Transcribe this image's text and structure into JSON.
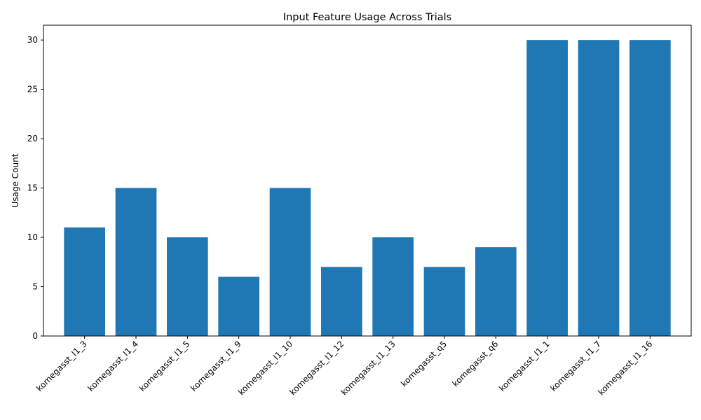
{
  "chart_data": {
    "type": "bar",
    "title": "Input Feature Usage Across Trials",
    "xlabel": "",
    "ylabel": "Usage Count",
    "categories": [
      "komegasst_I1_3",
      "komegasst_I1_4",
      "komegasst_I1_5",
      "komegasst_I1_9",
      "komegasst_I1_10",
      "komegasst_I1_12",
      "komegasst_I1_13",
      "komegasst_q5",
      "komegasst_q6",
      "komegasst_I1_1",
      "komegasst_I1_7",
      "komegasst_I1_16"
    ],
    "values": [
      11,
      15,
      10,
      6,
      15,
      7,
      10,
      7,
      9,
      30,
      30,
      30
    ],
    "ylim": [
      0,
      31.5
    ],
    "yticks": [
      0,
      5,
      10,
      15,
      20,
      25,
      30
    ],
    "bar_color": "#1f77b4",
    "grid": false,
    "legend": "none"
  }
}
